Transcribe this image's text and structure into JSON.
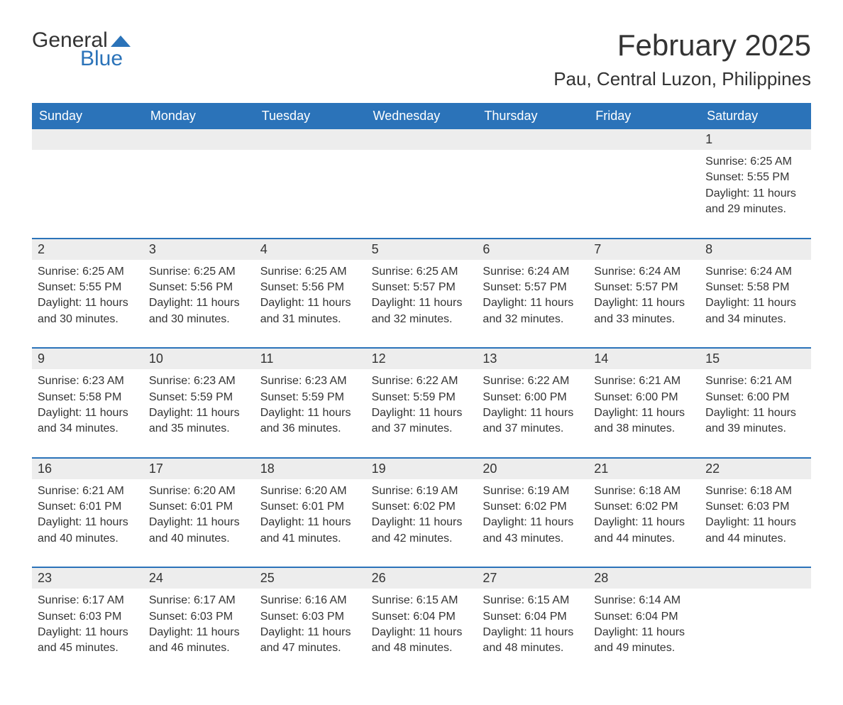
{
  "logo": {
    "text1": "General",
    "text2": "Blue"
  },
  "title": "February 2025",
  "location": "Pau, Central Luzon, Philippines",
  "colors": {
    "header_bg": "#2b73b9",
    "header_text": "#ffffff",
    "daynum_bg": "#ededed",
    "row_divider": "#2b73b9",
    "body_text": "#333333",
    "page_bg": "#ffffff",
    "logo_blue": "#2b73b9",
    "logo_gray": "#333333"
  },
  "typography": {
    "title_fontsize": 42,
    "location_fontsize": 26,
    "header_fontsize": 18,
    "daynum_fontsize": 18,
    "body_fontsize": 16
  },
  "day_headers": [
    "Sunday",
    "Monday",
    "Tuesday",
    "Wednesday",
    "Thursday",
    "Friday",
    "Saturday"
  ],
  "weeks": [
    [
      {
        "n": "",
        "sunrise": "",
        "sunset": "",
        "daylight": ""
      },
      {
        "n": "",
        "sunrise": "",
        "sunset": "",
        "daylight": ""
      },
      {
        "n": "",
        "sunrise": "",
        "sunset": "",
        "daylight": ""
      },
      {
        "n": "",
        "sunrise": "",
        "sunset": "",
        "daylight": ""
      },
      {
        "n": "",
        "sunrise": "",
        "sunset": "",
        "daylight": ""
      },
      {
        "n": "",
        "sunrise": "",
        "sunset": "",
        "daylight": ""
      },
      {
        "n": "1",
        "sunrise": "Sunrise: 6:25 AM",
        "sunset": "Sunset: 5:55 PM",
        "daylight": "Daylight: 11 hours and 29 minutes."
      }
    ],
    [
      {
        "n": "2",
        "sunrise": "Sunrise: 6:25 AM",
        "sunset": "Sunset: 5:55 PM",
        "daylight": "Daylight: 11 hours and 30 minutes."
      },
      {
        "n": "3",
        "sunrise": "Sunrise: 6:25 AM",
        "sunset": "Sunset: 5:56 PM",
        "daylight": "Daylight: 11 hours and 30 minutes."
      },
      {
        "n": "4",
        "sunrise": "Sunrise: 6:25 AM",
        "sunset": "Sunset: 5:56 PM",
        "daylight": "Daylight: 11 hours and 31 minutes."
      },
      {
        "n": "5",
        "sunrise": "Sunrise: 6:25 AM",
        "sunset": "Sunset: 5:57 PM",
        "daylight": "Daylight: 11 hours and 32 minutes."
      },
      {
        "n": "6",
        "sunrise": "Sunrise: 6:24 AM",
        "sunset": "Sunset: 5:57 PM",
        "daylight": "Daylight: 11 hours and 32 minutes."
      },
      {
        "n": "7",
        "sunrise": "Sunrise: 6:24 AM",
        "sunset": "Sunset: 5:57 PM",
        "daylight": "Daylight: 11 hours and 33 minutes."
      },
      {
        "n": "8",
        "sunrise": "Sunrise: 6:24 AM",
        "sunset": "Sunset: 5:58 PM",
        "daylight": "Daylight: 11 hours and 34 minutes."
      }
    ],
    [
      {
        "n": "9",
        "sunrise": "Sunrise: 6:23 AM",
        "sunset": "Sunset: 5:58 PM",
        "daylight": "Daylight: 11 hours and 34 minutes."
      },
      {
        "n": "10",
        "sunrise": "Sunrise: 6:23 AM",
        "sunset": "Sunset: 5:59 PM",
        "daylight": "Daylight: 11 hours and 35 minutes."
      },
      {
        "n": "11",
        "sunrise": "Sunrise: 6:23 AM",
        "sunset": "Sunset: 5:59 PM",
        "daylight": "Daylight: 11 hours and 36 minutes."
      },
      {
        "n": "12",
        "sunrise": "Sunrise: 6:22 AM",
        "sunset": "Sunset: 5:59 PM",
        "daylight": "Daylight: 11 hours and 37 minutes."
      },
      {
        "n": "13",
        "sunrise": "Sunrise: 6:22 AM",
        "sunset": "Sunset: 6:00 PM",
        "daylight": "Daylight: 11 hours and 37 minutes."
      },
      {
        "n": "14",
        "sunrise": "Sunrise: 6:21 AM",
        "sunset": "Sunset: 6:00 PM",
        "daylight": "Daylight: 11 hours and 38 minutes."
      },
      {
        "n": "15",
        "sunrise": "Sunrise: 6:21 AM",
        "sunset": "Sunset: 6:00 PM",
        "daylight": "Daylight: 11 hours and 39 minutes."
      }
    ],
    [
      {
        "n": "16",
        "sunrise": "Sunrise: 6:21 AM",
        "sunset": "Sunset: 6:01 PM",
        "daylight": "Daylight: 11 hours and 40 minutes."
      },
      {
        "n": "17",
        "sunrise": "Sunrise: 6:20 AM",
        "sunset": "Sunset: 6:01 PM",
        "daylight": "Daylight: 11 hours and 40 minutes."
      },
      {
        "n": "18",
        "sunrise": "Sunrise: 6:20 AM",
        "sunset": "Sunset: 6:01 PM",
        "daylight": "Daylight: 11 hours and 41 minutes."
      },
      {
        "n": "19",
        "sunrise": "Sunrise: 6:19 AM",
        "sunset": "Sunset: 6:02 PM",
        "daylight": "Daylight: 11 hours and 42 minutes."
      },
      {
        "n": "20",
        "sunrise": "Sunrise: 6:19 AM",
        "sunset": "Sunset: 6:02 PM",
        "daylight": "Daylight: 11 hours and 43 minutes."
      },
      {
        "n": "21",
        "sunrise": "Sunrise: 6:18 AM",
        "sunset": "Sunset: 6:02 PM",
        "daylight": "Daylight: 11 hours and 44 minutes."
      },
      {
        "n": "22",
        "sunrise": "Sunrise: 6:18 AM",
        "sunset": "Sunset: 6:03 PM",
        "daylight": "Daylight: 11 hours and 44 minutes."
      }
    ],
    [
      {
        "n": "23",
        "sunrise": "Sunrise: 6:17 AM",
        "sunset": "Sunset: 6:03 PM",
        "daylight": "Daylight: 11 hours and 45 minutes."
      },
      {
        "n": "24",
        "sunrise": "Sunrise: 6:17 AM",
        "sunset": "Sunset: 6:03 PM",
        "daylight": "Daylight: 11 hours and 46 minutes."
      },
      {
        "n": "25",
        "sunrise": "Sunrise: 6:16 AM",
        "sunset": "Sunset: 6:03 PM",
        "daylight": "Daylight: 11 hours and 47 minutes."
      },
      {
        "n": "26",
        "sunrise": "Sunrise: 6:15 AM",
        "sunset": "Sunset: 6:04 PM",
        "daylight": "Daylight: 11 hours and 48 minutes."
      },
      {
        "n": "27",
        "sunrise": "Sunrise: 6:15 AM",
        "sunset": "Sunset: 6:04 PM",
        "daylight": "Daylight: 11 hours and 48 minutes."
      },
      {
        "n": "28",
        "sunrise": "Sunrise: 6:14 AM",
        "sunset": "Sunset: 6:04 PM",
        "daylight": "Daylight: 11 hours and 49 minutes."
      },
      {
        "n": "",
        "sunrise": "",
        "sunset": "",
        "daylight": ""
      }
    ]
  ]
}
